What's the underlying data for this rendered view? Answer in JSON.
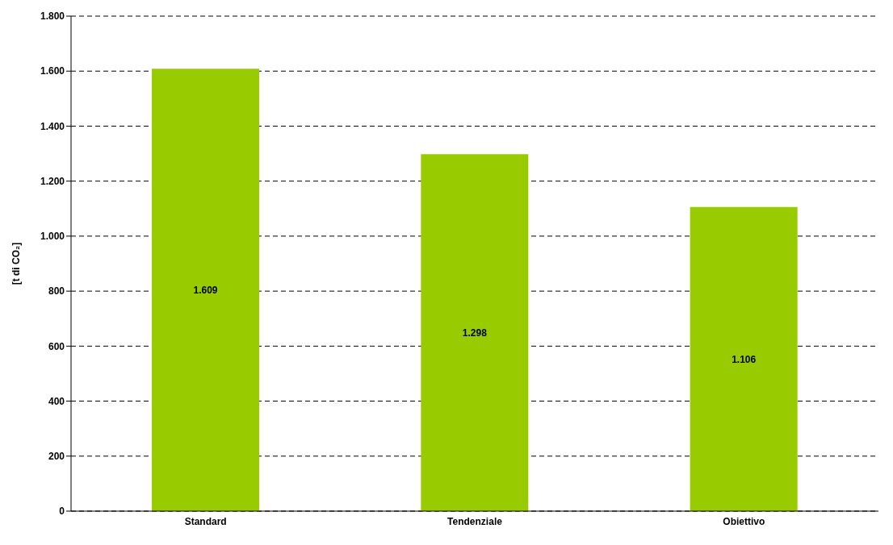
{
  "chart_data": {
    "type": "bar",
    "ylabel": "[t di CO₂]",
    "categories": [
      "Standard",
      "Tendenziale",
      "Obiettivo"
    ],
    "values": [
      1609,
      1298,
      1106
    ],
    "color": "#99cc00",
    "value_labels": [
      "1.609",
      "1.298",
      "1.106"
    ],
    "ylim": [
      0,
      1800
    ],
    "yticks": [
      {
        "value": 0,
        "label": "0"
      },
      {
        "value": 200,
        "label": "200"
      },
      {
        "value": 400,
        "label": "400"
      },
      {
        "value": 600,
        "label": "600"
      },
      {
        "value": 800,
        "label": "800"
      },
      {
        "value": 1000,
        "label": "1.000"
      },
      {
        "value": 1200,
        "label": "1.200"
      },
      {
        "value": 1400,
        "label": "1.400"
      },
      {
        "value": 1600,
        "label": "1.600"
      },
      {
        "value": 1800,
        "label": "1.800"
      }
    ],
    "grid": "y",
    "legend": false
  }
}
